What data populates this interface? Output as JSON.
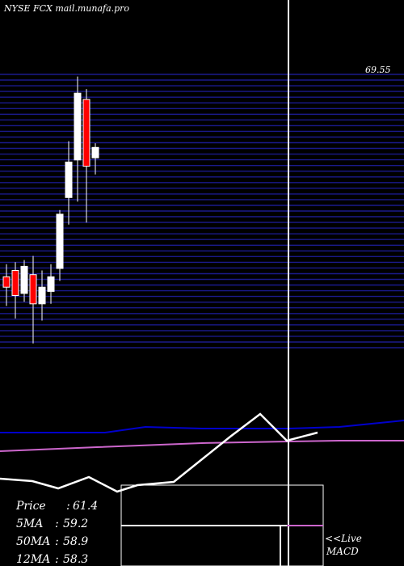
{
  "header": {
    "title": "NYSE FCX  mail.munafa.pro"
  },
  "colors": {
    "background": "#000000",
    "grid_line": "#1a1a8c",
    "candle_up": "#ffffff",
    "candle_down": "#ff0000",
    "wick": "#ffffff",
    "ma_line_blue": "#0000cc",
    "ma_line_magenta": "#cc66cc",
    "indicator_line": "#ffffff",
    "text": "#ffffff"
  },
  "chart_data": {
    "type": "candlestick",
    "title": "NYSE FCX  mail.munafa.pro",
    "top_price_label": "69.55",
    "price_range": [
      56.5,
      69.6
    ],
    "candles": [
      {
        "open": 59.9,
        "high": 60.5,
        "low": 58.5,
        "close": 59.4
      },
      {
        "open": 60.2,
        "high": 60.6,
        "low": 57.9,
        "close": 59.0
      },
      {
        "open": 59.1,
        "high": 60.7,
        "low": 58.7,
        "close": 60.4
      },
      {
        "open": 60.0,
        "high": 60.9,
        "low": 56.7,
        "close": 58.6
      },
      {
        "open": 58.6,
        "high": 60.2,
        "low": 57.8,
        "close": 59.4
      },
      {
        "open": 59.2,
        "high": 60.5,
        "low": 58.6,
        "close": 59.9
      },
      {
        "open": 60.3,
        "high": 63.1,
        "low": 59.7,
        "close": 62.9
      },
      {
        "open": 63.7,
        "high": 66.4,
        "low": 62.4,
        "close": 65.4
      },
      {
        "open": 65.5,
        "high": 69.5,
        "low": 63.5,
        "close": 68.7
      },
      {
        "open": 68.4,
        "high": 68.9,
        "low": 62.5,
        "close": 65.2
      },
      {
        "open": 65.6,
        "high": 66.3,
        "low": 64.8,
        "close": 66.1
      }
    ],
    "stats": [
      {
        "label": "Price  ",
        "value": "61.4"
      },
      {
        "label": "5MA  ",
        "value": "59.2"
      },
      {
        "label": "50MA ",
        "value": "58.9"
      },
      {
        "label": "12MA ",
        "value": "58.3"
      }
    ],
    "indicator_labels": [
      "<<Live",
      "MACD"
    ],
    "indicator_upper_line": [
      0.12,
      0.18,
      0.2,
      0.28,
      0.3,
      0.25,
      0.55,
      0.65,
      0.85,
      0.6,
      0.7,
      0.78,
      0.75,
      0.8,
      0.82,
      0.79,
      0.78,
      0.8,
      0.83,
      0.79,
      0.75,
      0.8,
      0.82,
      0.84,
      0.87,
      0.9
    ],
    "indicator_lower_line": [
      0.1,
      0.12,
      0.15,
      0.09,
      0.12,
      0.3,
      0.55,
      0.85,
      1.0,
      0.75,
      0.8
    ]
  }
}
